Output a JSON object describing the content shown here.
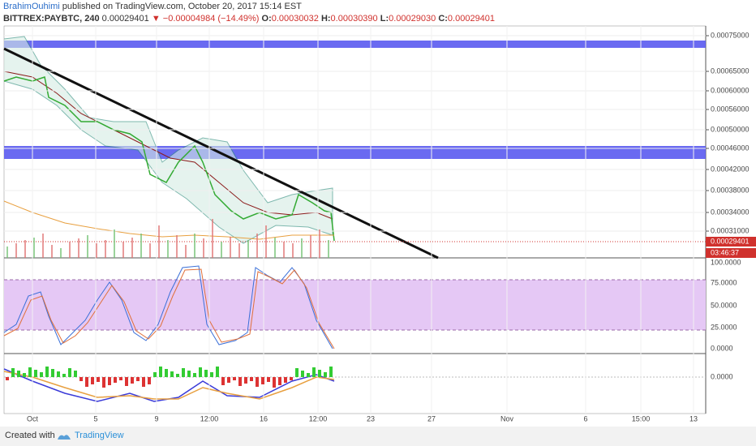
{
  "header": {
    "author": "BrahimOuhimi",
    "published": "published on TradingView.com, October 20, 2017 15:14 EST",
    "symbol": "BITTREX:PAYBTC, 240",
    "last": "0.00029401",
    "change": "▼ −0.00004984 (−14.49%)",
    "ohlc": [
      {
        "label": "O:",
        "value": "0.00030032"
      },
      {
        "label": "H:",
        "value": "0.00030390"
      },
      {
        "label": "L:",
        "value": "0.00029030"
      },
      {
        "label": "C:",
        "value": "0.00029401"
      }
    ]
  },
  "price_axis": [
    "0.00075000",
    "0.00065000",
    "0.00060000",
    "0.00056000",
    "0.00050000",
    "0.00046000",
    "0.00042000",
    "0.00038000",
    "0.00034000",
    "0.00031000"
  ],
  "price_tag": "0.00029401",
  "countdown": "03:46:37",
  "stoch_axis": [
    "100.0000",
    "75.0000",
    "50.0000",
    "25.0000",
    "0.0000"
  ],
  "macd_axis": [
    "0.0000"
  ],
  "time_axis": [
    "Oct",
    "5",
    "9",
    "12:00",
    "16",
    "12:00",
    "23",
    "27",
    "Nov",
    "6",
    "15:00",
    "13"
  ],
  "footer": {
    "created": "Created with",
    "brand": "TradingView"
  }
}
